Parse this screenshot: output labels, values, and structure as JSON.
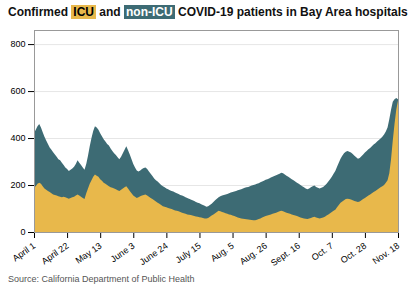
{
  "chart_data": {
    "type": "area",
    "title": "Confirmed ICU and non-ICU COVID-19 patients in Bay Area hospitals",
    "caption": "Source: California Department of Public Health",
    "categories": [
      "April 1",
      null,
      null,
      null,
      null,
      null,
      null,
      null,
      null,
      null,
      null,
      null,
      null,
      null,
      null,
      null,
      null,
      null,
      null,
      "April 22",
      null,
      null,
      null,
      null,
      null,
      null,
      null,
      null,
      null,
      null,
      null,
      null,
      null,
      null,
      null,
      null,
      null,
      null,
      "May 13",
      null,
      null,
      null,
      null,
      null,
      null,
      null,
      null,
      null,
      null,
      null,
      null,
      null,
      null,
      null,
      null,
      null,
      null,
      "June 3",
      null,
      null,
      null,
      null,
      null,
      null,
      null,
      null,
      null,
      null,
      null,
      null,
      null,
      null,
      null,
      null,
      null,
      null,
      "June 24",
      null,
      null,
      null,
      null,
      null,
      null,
      null,
      null,
      null,
      null,
      null,
      null,
      null,
      null,
      null,
      null,
      null,
      null,
      "July 15",
      null,
      null,
      null,
      null,
      null,
      null,
      null,
      null,
      null,
      null,
      null,
      null,
      null,
      null,
      null,
      null,
      null,
      null,
      "Aug. 5",
      null,
      null,
      null,
      null,
      null,
      null,
      null,
      null,
      null,
      null,
      null,
      null,
      null,
      null,
      null,
      null,
      null,
      null,
      "Aug. 26",
      null,
      null,
      null,
      null,
      null,
      null,
      null,
      null,
      null,
      null,
      null,
      null,
      null,
      null,
      null,
      null,
      null,
      null,
      "Sept. 16",
      null,
      null,
      null,
      null,
      null,
      null,
      null,
      null,
      null,
      null,
      null,
      null,
      null,
      null,
      null,
      null,
      null,
      null,
      "Oct. 7",
      null,
      null,
      null,
      null,
      null,
      null,
      null,
      null,
      null,
      null,
      null,
      null,
      null,
      null,
      null,
      null,
      null,
      null,
      "Oct. 28",
      null,
      null,
      null,
      null,
      null,
      null,
      null,
      null,
      null,
      null,
      null,
      null,
      null,
      null,
      null,
      null,
      null,
      null,
      "Nov. 18"
    ],
    "series": [
      {
        "name": "non-ICU",
        "color": "#3D6B74",
        "values": [
          420,
          435,
          450,
          460,
          445,
          425,
          405,
          390,
          375,
          360,
          350,
          340,
          330,
          320,
          310,
          305,
          295,
          285,
          275,
          268,
          260,
          265,
          270,
          278,
          290,
          305,
          295,
          285,
          275,
          265,
          290,
          325,
          365,
          400,
          430,
          450,
          445,
          435,
          420,
          408,
          395,
          385,
          375,
          368,
          355,
          345,
          335,
          328,
          318,
          310,
          320,
          335,
          350,
          365,
          348,
          330,
          310,
          290,
          275,
          262,
          258,
          262,
          268,
          272,
          275,
          268,
          258,
          248,
          238,
          228,
          220,
          215,
          208,
          200,
          195,
          190,
          185,
          182,
          178,
          175,
          172,
          168,
          165,
          162,
          158,
          155,
          152,
          148,
          145,
          142,
          138,
          135,
          132,
          128,
          125,
          122,
          118,
          115,
          112,
          108,
          110,
          115,
          120,
          128,
          135,
          142,
          148,
          152,
          155,
          158,
          160,
          162,
          165,
          168,
          170,
          172,
          175,
          178,
          180,
          182,
          185,
          188,
          190,
          192,
          195,
          198,
          200,
          202,
          205,
          208,
          212,
          215,
          218,
          222,
          225,
          228,
          232,
          235,
          238,
          242,
          245,
          248,
          252,
          250,
          245,
          240,
          235,
          230,
          225,
          220,
          215,
          210,
          205,
          200,
          195,
          190,
          185,
          182,
          185,
          190,
          195,
          198,
          192,
          188,
          185,
          188,
          192,
          198,
          205,
          215,
          225,
          235,
          248,
          260,
          278,
          295,
          312,
          325,
          335,
          342,
          345,
          342,
          338,
          332,
          325,
          318,
          312,
          315,
          322,
          330,
          338,
          345,
          352,
          358,
          365,
          372,
          378,
          385,
          392,
          398,
          405,
          415,
          428,
          445,
          480,
          520,
          555,
          565,
          570,
          565
        ]
      },
      {
        "name": "ICU",
        "color": "#E8B84B",
        "values": [
          190,
          195,
          205,
          210,
          205,
          195,
          185,
          180,
          175,
          170,
          165,
          160,
          158,
          155,
          152,
          150,
          148,
          150,
          148,
          145,
          142,
          145,
          148,
          150,
          155,
          160,
          155,
          150,
          145,
          140,
          165,
          185,
          205,
          220,
          235,
          245,
          240,
          235,
          225,
          218,
          210,
          205,
          200,
          195,
          190,
          188,
          185,
          182,
          178,
          175,
          180,
          185,
          190,
          195,
          185,
          175,
          165,
          155,
          150,
          145,
          148,
          152,
          155,
          158,
          160,
          155,
          150,
          145,
          140,
          135,
          130,
          125,
          120,
          115,
          110,
          108,
          105,
          102,
          100,
          98,
          95,
          92,
          90,
          88,
          85,
          82,
          80,
          78,
          75,
          73,
          72,
          70,
          68,
          66,
          65,
          63,
          62,
          60,
          58,
          57,
          60,
          65,
          70,
          75,
          80,
          85,
          90,
          88,
          85,
          83,
          80,
          78,
          75,
          73,
          70,
          68,
          65,
          62,
          60,
          58,
          56,
          55,
          54,
          53,
          52,
          51,
          50,
          50,
          52,
          55,
          58,
          62,
          65,
          68,
          70,
          72,
          75,
          78,
          80,
          82,
          85,
          88,
          90,
          88,
          85,
          82,
          80,
          78,
          75,
          72,
          70,
          68,
          65,
          62,
          60,
          58,
          56,
          55,
          57,
          60,
          63,
          65,
          62,
          60,
          58,
          60,
          62,
          65,
          70,
          75,
          80,
          85,
          90,
          95,
          105,
          115,
          125,
          130,
          135,
          140,
          142,
          140,
          138,
          135,
          132,
          130,
          128,
          130,
          135,
          140,
          145,
          150,
          155,
          160,
          165,
          170,
          175,
          180,
          185,
          190,
          195,
          200,
          210,
          220,
          250,
          310,
          390,
          460,
          520,
          560
        ]
      }
    ],
    "ylim": [
      0,
      860
    ],
    "yticks": [
      0,
      200,
      400,
      600,
      800
    ],
    "grid": true
  }
}
